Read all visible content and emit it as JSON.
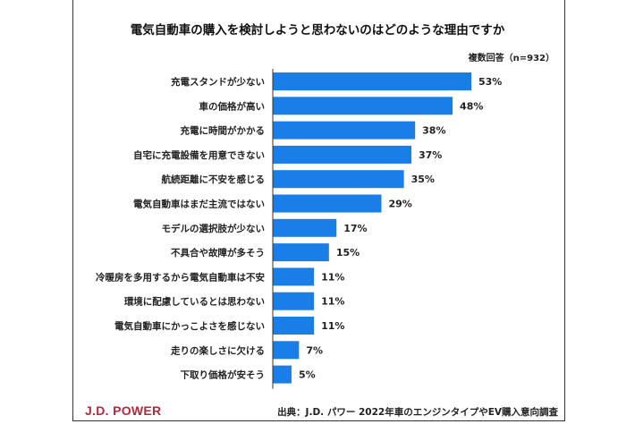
{
  "chart_data": {
    "type": "bar",
    "orientation": "horizontal",
    "title": "電気自動車の購入を検討しようと思わないのはどのような理由ですか",
    "note": "複数回答（n=932）",
    "categories": [
      "充電スタンドが少ない",
      "車の価格が高い",
      "充電に時間がかかる",
      "自宅に充電設備を用意できない",
      "航続距離に不安を感じる",
      "電気自動車はまだ主流ではない",
      "モデルの選択肢が少ない",
      "不具合や故障が多そう",
      "冷暖房を多用するから電気自動車は不安",
      "環境に配慮しているとは思わない",
      "電気自動車にかっこよさを感じない",
      "走りの楽しさに欠ける",
      "下取り価格が安そう"
    ],
    "values": [
      53,
      48,
      38,
      37,
      35,
      29,
      17,
      15,
      11,
      11,
      11,
      7,
      5
    ],
    "value_suffix": "%",
    "xlim": [
      0,
      100
    ],
    "grid": false,
    "bar_color": "#1a7ee8"
  },
  "footer": {
    "logo": "J.D. POWER",
    "source": "出典：J.D. パワー 2022年車のエンジンタイプやEV購入意向調査"
  }
}
